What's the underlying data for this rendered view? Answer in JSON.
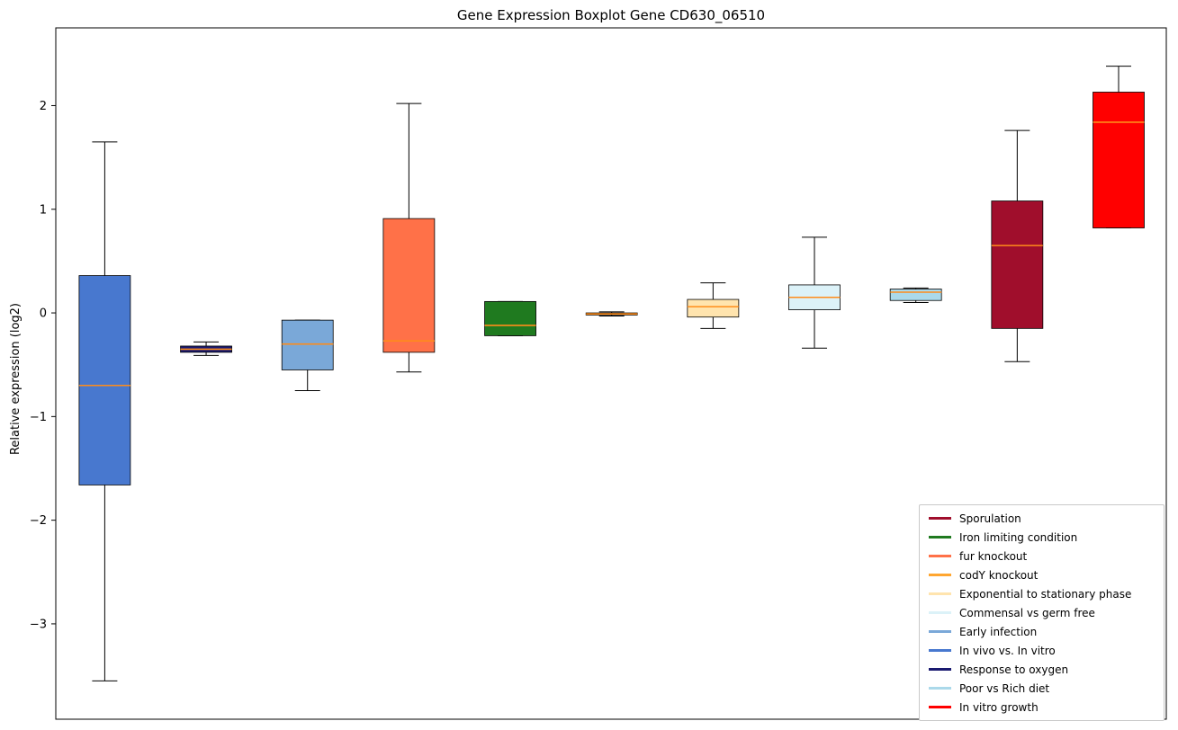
{
  "chart_data": {
    "type": "boxplot",
    "title": "Gene Expression Boxplot Gene CD630_06510",
    "xlabel": "",
    "ylabel": "Relative expression (log2)",
    "ylim": [
      -3.92,
      2.75
    ],
    "grid": false,
    "legend_position": "lower right",
    "median_color": "#FF8C1A",
    "yticks": [
      {
        "value": 2,
        "label": "2"
      },
      {
        "value": 1,
        "label": "1"
      },
      {
        "value": 0,
        "label": "0"
      },
      {
        "value": -1,
        "label": "−1"
      },
      {
        "value": -2,
        "label": "−2"
      },
      {
        "value": -3,
        "label": "−3"
      }
    ],
    "series": [
      {
        "name": "In vivo vs. In vitro",
        "color": "#4878CF",
        "whisker_low": -3.55,
        "q1": -1.66,
        "median": -0.7,
        "q3": 0.36,
        "whisker_high": 1.65
      },
      {
        "name": "Response to oxygen",
        "color": "#1A1A70",
        "whisker_low": -0.41,
        "q1": -0.38,
        "median": -0.35,
        "q3": -0.32,
        "whisker_high": -0.28
      },
      {
        "name": "Early infection",
        "color": "#7AA8D8",
        "whisker_low": -0.75,
        "q1": -0.55,
        "median": -0.3,
        "q3": -0.07,
        "whisker_high": -0.07
      },
      {
        "name": "fur knockout",
        "color": "#FF7148",
        "whisker_low": -0.57,
        "q1": -0.38,
        "median": -0.27,
        "q3": 0.91,
        "whisker_high": 2.02
      },
      {
        "name": "Iron limiting condition",
        "color": "#1F7A1F",
        "whisker_low": -0.22,
        "q1": -0.22,
        "median": -0.12,
        "q3": 0.11,
        "whisker_high": 0.11
      },
      {
        "name": "codY knockout",
        "color": "#FFA630",
        "whisker_low": -0.03,
        "q1": -0.02,
        "median": -0.01,
        "q3": 0.0,
        "whisker_high": 0.01
      },
      {
        "name": "Exponential to stationary phase",
        "color": "#FFE4AE",
        "whisker_low": -0.15,
        "q1": -0.04,
        "median": 0.06,
        "q3": 0.13,
        "whisker_high": 0.29
      },
      {
        "name": "Commensal vs germ free",
        "color": "#DCF2F8",
        "whisker_low": -0.34,
        "q1": 0.03,
        "median": 0.15,
        "q3": 0.27,
        "whisker_high": 0.73
      },
      {
        "name": "Poor vs Rich diet",
        "color": "#ABD9EA",
        "whisker_low": 0.1,
        "q1": 0.12,
        "median": 0.2,
        "q3": 0.23,
        "whisker_high": 0.24
      },
      {
        "name": "Sporulation",
        "color": "#A00E2C",
        "whisker_low": -0.47,
        "q1": -0.15,
        "median": 0.65,
        "q3": 1.08,
        "whisker_high": 1.76
      },
      {
        "name": "In vitro growth",
        "color": "#FF0000",
        "whisker_low": 0.82,
        "q1": 0.82,
        "median": 1.84,
        "q3": 2.13,
        "whisker_high": 2.38
      }
    ],
    "legend_order": [
      "Sporulation",
      "Iron limiting condition",
      "fur knockout",
      "codY knockout",
      "Exponential to stationary phase",
      "Commensal vs germ free",
      "Early infection",
      "In vivo vs. In vitro",
      "Response to oxygen",
      "Poor vs Rich diet",
      "In vitro growth"
    ]
  }
}
